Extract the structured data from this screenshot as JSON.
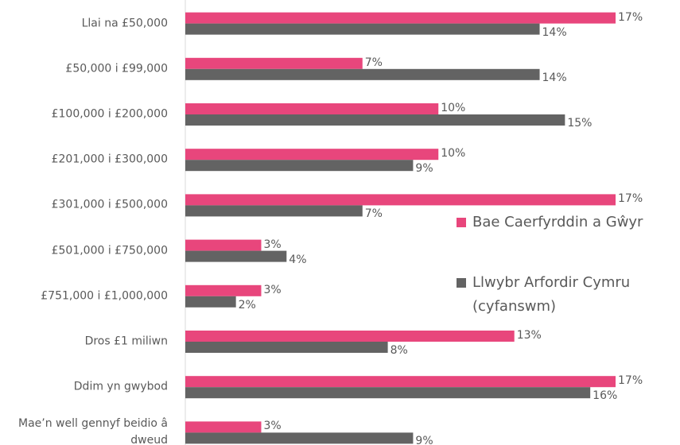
{
  "chart_data": {
    "type": "bar",
    "orientation": "horizontal",
    "categories": [
      "Llai na £50,000",
      "£50,000 i £99,000",
      "£100,000 i £200,000",
      "£201,000 i £300,000",
      "£301,000 i £500,000",
      "£501,000 i £750,000",
      "£751,000 i £1,000,000",
      "Dros £1 miliwn",
      "Ddim yn gwybod",
      "Mae’n well gennyf beidio â dweud"
    ],
    "series": [
      {
        "name": "Bae Caerfyrddin a Gŵyr",
        "color": "#e8467c",
        "values": [
          17,
          7,
          10,
          10,
          17,
          3,
          3,
          13,
          17,
          3
        ],
        "value_labels": [
          "17%",
          "7%",
          "10%",
          "10%",
          "17%",
          "3%",
          "3%",
          "13%",
          "17%",
          "3%"
        ]
      },
      {
        "name": "Llwybr Arfordir Cymru (cyfanswm)",
        "color": "#636363",
        "values": [
          14,
          14,
          15,
          9,
          7,
          4,
          2,
          8,
          16,
          9
        ],
        "value_labels": [
          "14%",
          "14%",
          "15%",
          "9%",
          "7%",
          "4%",
          "2%",
          "8%",
          "16%",
          "9%"
        ]
      }
    ],
    "legend": "right"
  }
}
